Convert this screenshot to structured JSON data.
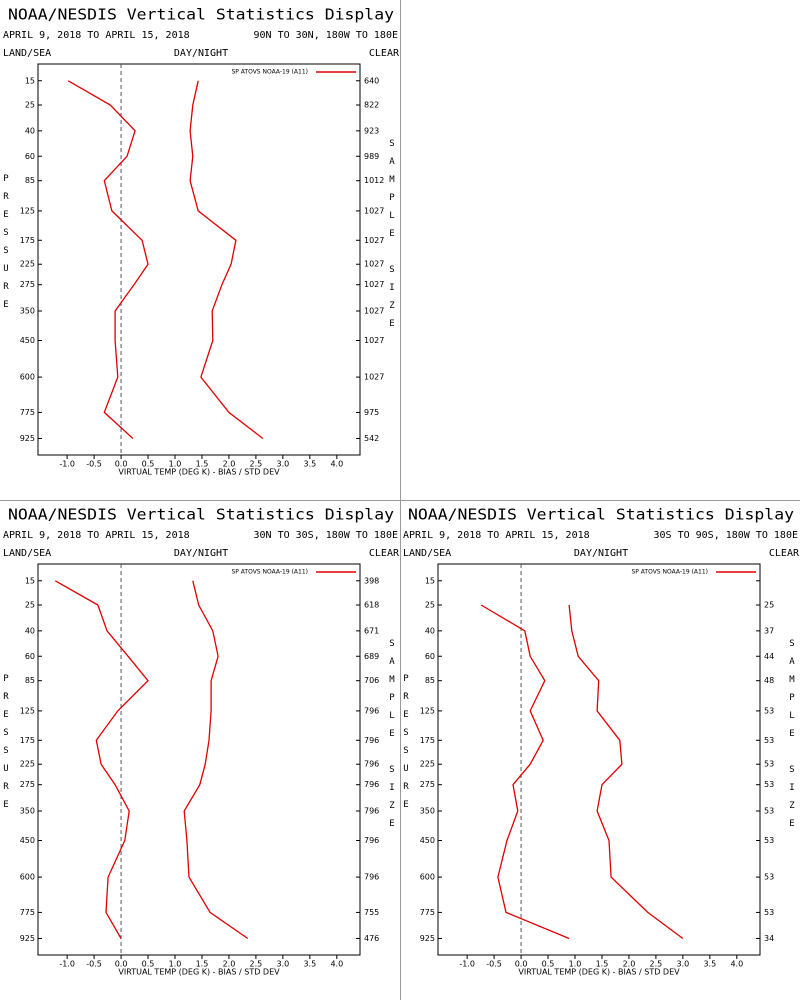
{
  "chart_data": [
    {
      "type": "line",
      "title": "NOAA/NESDIS Vertical Statistics Display",
      "subtitle": "APRIL 9, 2018 TO APRIL 15, 2018",
      "region": "90N TO 30N, 180W TO 180E",
      "left_label": "LAND/SEA",
      "center_label": "DAY/NIGHT",
      "right_label": "CLEAR",
      "ylabel": "PRESSURE",
      "y2label": "SAMPLE SIZE",
      "xlabel": "VIRTUAL TEMP (DEG K) - BIAS / STD DEV",
      "legend": "SP ATOVS NOAA-19 (A11)",
      "y": [
        15,
        25,
        40,
        60,
        85,
        125,
        175,
        225,
        275,
        350,
        450,
        600,
        775,
        925
      ],
      "ylim": [
        10,
        1030
      ],
      "yscale": "power",
      "yexponent": 0.3,
      "yticks": [
        15,
        25,
        40,
        60,
        85,
        125,
        175,
        225,
        275,
        350,
        450,
        600,
        775,
        925
      ],
      "sample_size": [
        640,
        822,
        923,
        989,
        1012,
        1027,
        1027,
        1027,
        1027,
        1027,
        1027,
        1027,
        975,
        542
      ],
      "xlim": [
        -1.54,
        4.43
      ],
      "xticks": [
        {
          "value": -1,
          "label": "-1.0"
        },
        {
          "value": -0.5,
          "label": "-0.5"
        },
        {
          "value": 0,
          "label": "0.0"
        },
        {
          "value": 0.5,
          "label": "0.5"
        },
        {
          "value": 1,
          "label": "1.0"
        },
        {
          "value": 1.5,
          "label": "1.5"
        },
        {
          "value": 2,
          "label": "2.0"
        },
        {
          "value": 2.5,
          "label": "2.5"
        },
        {
          "value": 3,
          "label": "3.0"
        },
        {
          "value": 3.5,
          "label": "3.5"
        },
        {
          "value": 4,
          "label": "4.0"
        }
      ],
      "series": [
        {
          "color": "#e00000",
          "values": [
            -0.98,
            -0.2,
            0.26,
            0.11,
            -0.31,
            -0.17,
            0.39,
            0.5,
            0.24,
            -0.11,
            -0.11,
            -0.06,
            -0.31,
            0.22
          ]
        },
        {
          "color": "#e00000",
          "values": [
            1.43,
            1.33,
            1.28,
            1.33,
            1.28,
            1.43,
            2.13,
            2.04,
            1.87,
            1.69,
            1.7,
            1.48,
            2.0,
            2.63
          ]
        }
      ]
    },
    {
      "type": "line",
      "title": "NOAA/NESDIS Vertical Statistics Display",
      "subtitle": "APRIL 9, 2018 TO APRIL 15, 2018",
      "region": "30N TO 30S, 180W TO 180E",
      "left_label": "LAND/SEA",
      "center_label": "DAY/NIGHT",
      "right_label": "CLEAR",
      "ylabel": "PRESSURE",
      "y2label": "SAMPLE SIZE",
      "xlabel": "VIRTUAL TEMP (DEG K) - BIAS / STD DEV",
      "legend": "SP ATOVS NOAA-19 (A11)",
      "y": [
        15,
        25,
        40,
        60,
        85,
        125,
        175,
        225,
        275,
        350,
        450,
        600,
        775,
        925
      ],
      "ylim": [
        10,
        1030
      ],
      "yscale": "power",
      "yexponent": 0.3,
      "yticks": [
        15,
        25,
        40,
        60,
        85,
        125,
        175,
        225,
        275,
        350,
        450,
        600,
        775,
        925
      ],
      "sample_size": [
        398,
        618,
        671,
        689,
        706,
        796,
        796,
        796,
        796,
        796,
        796,
        796,
        755,
        476
      ],
      "xlim": [
        -1.54,
        4.43
      ],
      "xticks": [
        {
          "value": -1,
          "label": "-1.0"
        },
        {
          "value": -0.5,
          "label": "-0.5"
        },
        {
          "value": 0,
          "label": "0.0"
        },
        {
          "value": 0.5,
          "label": "0.5"
        },
        {
          "value": 1,
          "label": "1.0"
        },
        {
          "value": 1.5,
          "label": "1.5"
        },
        {
          "value": 2,
          "label": "2.0"
        },
        {
          "value": 2.5,
          "label": "2.5"
        },
        {
          "value": 3,
          "label": "3.0"
        },
        {
          "value": 3.5,
          "label": "3.5"
        },
        {
          "value": 4,
          "label": "4.0"
        }
      ],
      "series": [
        {
          "color": "#e00000",
          "values": [
            -1.22,
            -0.43,
            -0.26,
            0.13,
            0.5,
            -0.06,
            -0.46,
            -0.37,
            -0.11,
            0.15,
            0.07,
            -0.24,
            -0.28,
            0.0
          ]
        },
        {
          "color": "#e00000",
          "values": [
            1.33,
            1.44,
            1.7,
            1.8,
            1.67,
            1.67,
            1.63,
            1.56,
            1.46,
            1.17,
            1.22,
            1.26,
            1.65,
            2.35
          ]
        }
      ]
    },
    {
      "type": "line",
      "title": "NOAA/NESDIS Vertical Statistics Display",
      "subtitle": "APRIL 9, 2018 TO APRIL 15, 2018",
      "region": "30S TO 90S, 180W TO 180E",
      "left_label": "LAND/SEA",
      "center_label": "DAY/NIGHT",
      "right_label": "CLEAR",
      "ylabel": "PRESSURE",
      "y2label": "SAMPLE SIZE",
      "xlabel": "VIRTUAL TEMP (DEG K) - BIAS / STD DEV",
      "legend": "SP ATOVS NOAA-19 (A11)",
      "y": [
        15,
        25,
        40,
        60,
        85,
        125,
        175,
        225,
        275,
        350,
        450,
        600,
        775,
        925
      ],
      "ylim": [
        10,
        1030
      ],
      "yscale": "power",
      "yexponent": 0.3,
      "yticks": [
        15,
        25,
        40,
        60,
        85,
        125,
        175,
        225,
        275,
        350,
        450,
        600,
        775,
        925
      ],
      "sample_size": [
        null,
        25,
        37,
        44,
        48,
        53,
        53,
        53,
        53,
        53,
        53,
        53,
        53,
        34
      ],
      "xlim": [
        -1.54,
        4.43
      ],
      "xticks": [
        {
          "value": -1,
          "label": "-1.0"
        },
        {
          "value": -0.5,
          "label": "-0.5"
        },
        {
          "value": 0,
          "label": "0.0"
        },
        {
          "value": 0.5,
          "label": "0.5"
        },
        {
          "value": 1,
          "label": "1.0"
        },
        {
          "value": 1.5,
          "label": "1.5"
        },
        {
          "value": 2,
          "label": "2.0"
        },
        {
          "value": 2.5,
          "label": "2.5"
        },
        {
          "value": 3,
          "label": "3.0"
        },
        {
          "value": 3.5,
          "label": "3.5"
        },
        {
          "value": 4,
          "label": "4.0"
        }
      ],
      "series": [
        {
          "color": "#e00000",
          "values": [
            null,
            -0.74,
            0.07,
            0.17,
            0.44,
            0.17,
            0.41,
            0.17,
            -0.15,
            -0.06,
            -0.26,
            -0.43,
            -0.28,
            0.89
          ]
        },
        {
          "color": "#e00000",
          "values": [
            null,
            0.89,
            0.94,
            1.06,
            1.44,
            1.41,
            1.83,
            1.87,
            1.5,
            1.41,
            1.63,
            1.67,
            2.35,
            3.0
          ]
        }
      ]
    }
  ]
}
